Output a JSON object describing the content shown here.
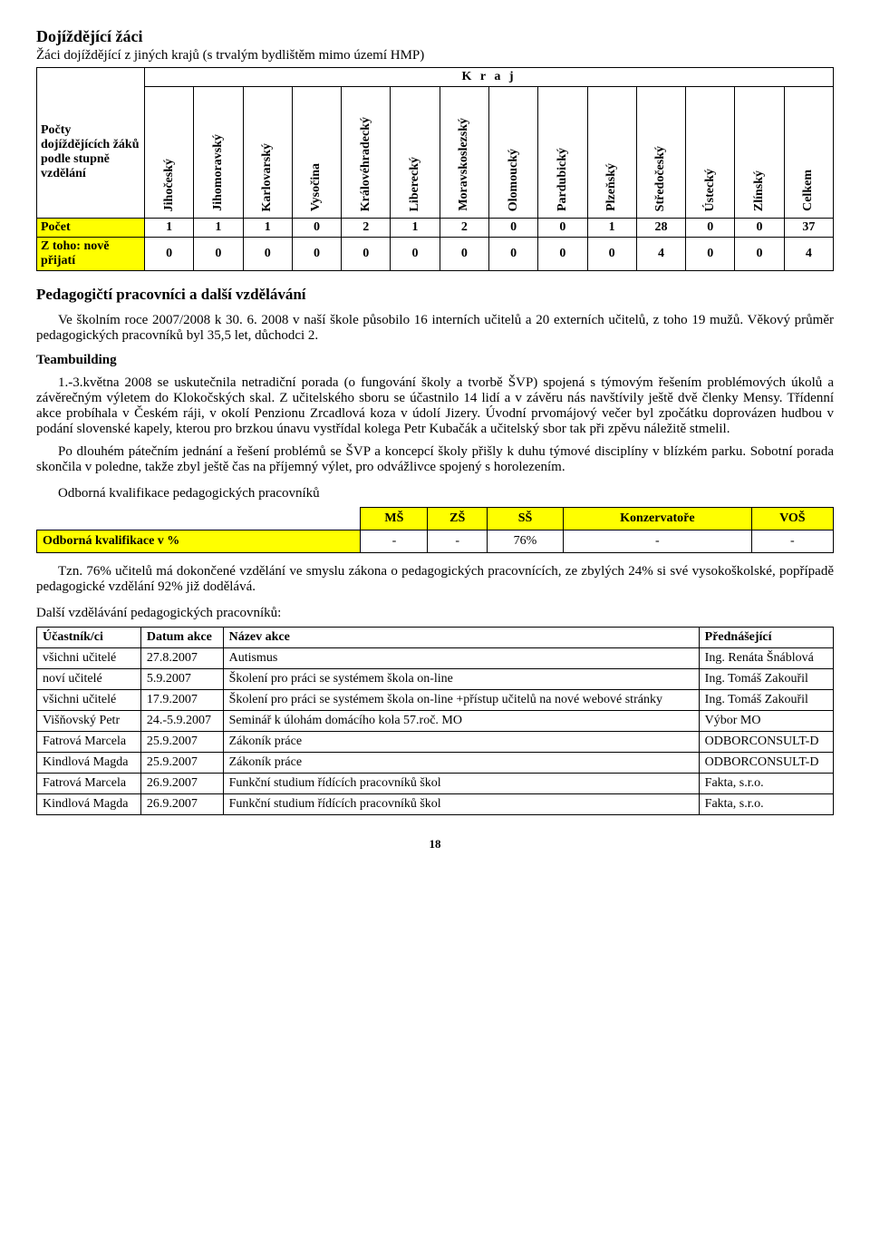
{
  "title": "Dojíždějící žáci",
  "subtitle": "Žáci dojíždějící z jiných krajů (s trvalým bydlištěm mimo území HMP)",
  "kraj_label": "K r a j",
  "kraj_table": {
    "row_header_label": "Počty dojíždějících žáků podle stupně vzdělání",
    "columns": [
      "Jihočeský",
      "Jihomoravský",
      "Karlovarský",
      "Vysočina",
      "Královéhradecký",
      "Liberecký",
      "Moravskoslezský",
      "Olomoucký",
      "Pardubický",
      "Plzeňský",
      "Středočeský",
      "Ústecký",
      "Zlínský",
      "Celkem"
    ],
    "rows": [
      {
        "label": "Počet",
        "values": [
          1,
          1,
          1,
          0,
          2,
          1,
          2,
          0,
          0,
          1,
          28,
          0,
          0,
          37
        ]
      },
      {
        "label": "Z toho: nově přijatí",
        "values": [
          0,
          0,
          0,
          0,
          0,
          0,
          0,
          0,
          0,
          0,
          4,
          0,
          0,
          4
        ]
      }
    ],
    "highlight_color": "#ffff00"
  },
  "section_heading": "Pedagogičtí pracovníci a další vzdělávání",
  "para1": "Ve školním roce 2007/2008 k 30. 6. 2008 v naší škole působilo 16 interních učitelů a 20 externích učitelů, z toho 19 mužů. Věkový průměr pedagogických pracovníků byl 35,5 let, důchodci 2.",
  "tb_heading": "Teambuilding",
  "para2": "1.-3.května 2008 se uskutečnila netradiční porada (o fungování školy a tvorbě ŠVP) spojená s týmovým řešením problémových úkolů a závěrečným výletem do Klokočských skal. Z učitelského sboru se účastnilo 14 lidí a v závěru nás navštívily ještě dvě členky Mensy. Třídenní akce probíhala v Českém ráji, v okolí Penzionu Zrcadlová koza v údolí Jizery. Úvodní prvomájový večer byl zpočátku doprovázen hudbou v podání slovenské kapely, kterou pro brzkou únavu vystřídal kolega Petr Kubačák a učitelský sbor tak při zpěvu náležitě stmelil.",
  "para3": "Po dlouhém pátečním jednání a řešení problémů se ŠVP a koncepcí školy přišly k duhu týmové disciplíny v blízkém parku. Sobotní porada skončila v poledne, takže zbyl ještě čas na příjemný výlet, pro odvážlivce spojený s horolezením.",
  "qual_caption": "Odborná kvalifikace pedagogických pracovníků",
  "qual_table": {
    "columns": [
      "MŠ",
      "ZŠ",
      "SŠ",
      "Konzervatoře",
      "VOŠ"
    ],
    "row_label": "Odborná kvalifikace v %",
    "values": [
      "-",
      "-",
      "76%",
      "-",
      "-"
    ],
    "highlight_color": "#ffff00"
  },
  "para4": "Tzn. 76% učitelů má dokončené vzdělání ve smyslu zákona o pedagogických pracovnících, ze zbylých 24% si své vysokoškolské, popřípadě pedagogické vzdělání 92% již dodělává.",
  "training_caption": "Další vzdělávání pedagogických pracovníků:",
  "training_table": {
    "headers": [
      "Účastník/ci",
      "Datum akce",
      "Název akce",
      "Přednášející"
    ],
    "rows": [
      [
        "všichni učitelé",
        "27.8.2007",
        "Autismus",
        "Ing. Renáta Šnáblová"
      ],
      [
        "noví učitelé",
        "5.9.2007",
        "Školení pro práci se systémem škola on-line",
        "Ing. Tomáš Zakouřil"
      ],
      [
        "všichni učitelé",
        "17.9.2007",
        "Školení pro práci se systémem škola on-line +přístup učitelů na nové webové stránky",
        "Ing. Tomáš Zakouřil"
      ],
      [
        "Višňovský Petr",
        "24.-5.9.2007",
        "Seminář k úlohám domácího kola 57.roč. MO",
        "Výbor MO"
      ],
      [
        "Fatrová Marcela",
        "25.9.2007",
        "Zákoník práce",
        "ODBORCONSULT-D"
      ],
      [
        "Kindlová Magda",
        "25.9.2007",
        "Zákoník práce",
        "ODBORCONSULT-D"
      ],
      [
        "Fatrová Marcela",
        "26.9.2007",
        "Funkční studium řídících pracovníků škol",
        "Fakta, s.r.o."
      ],
      [
        "Kindlová Magda",
        "26.9.2007",
        "Funkční studium řídících pracovníků škol",
        "Fakta, s.r.o."
      ]
    ]
  },
  "page_number": "18"
}
